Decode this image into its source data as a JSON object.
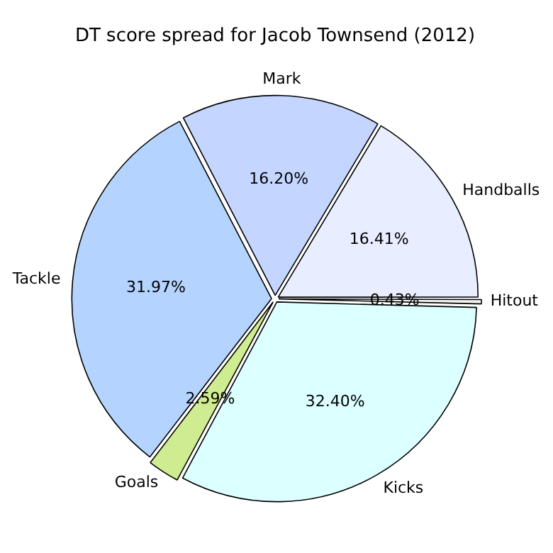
{
  "chart_data": {
    "type": "pie",
    "title": "DT score spread for Jacob Townsend (2012)",
    "categories": [
      "Hitout",
      "Kicks",
      "Goals",
      "Tackle",
      "Mark",
      "Handballs"
    ],
    "values": [
      0.43,
      32.4,
      2.59,
      31.97,
      16.2,
      16.41
    ],
    "colors": [
      "#f2f2f2",
      "#dcffff",
      "#d0ec90",
      "#b4d4ff",
      "#c4d6ff",
      "#e8eeff"
    ],
    "value_labels": [
      "0.43%",
      "32.40%",
      "2.59%",
      "31.97%",
      "16.20%",
      "16.41%"
    ],
    "legend": false
  }
}
